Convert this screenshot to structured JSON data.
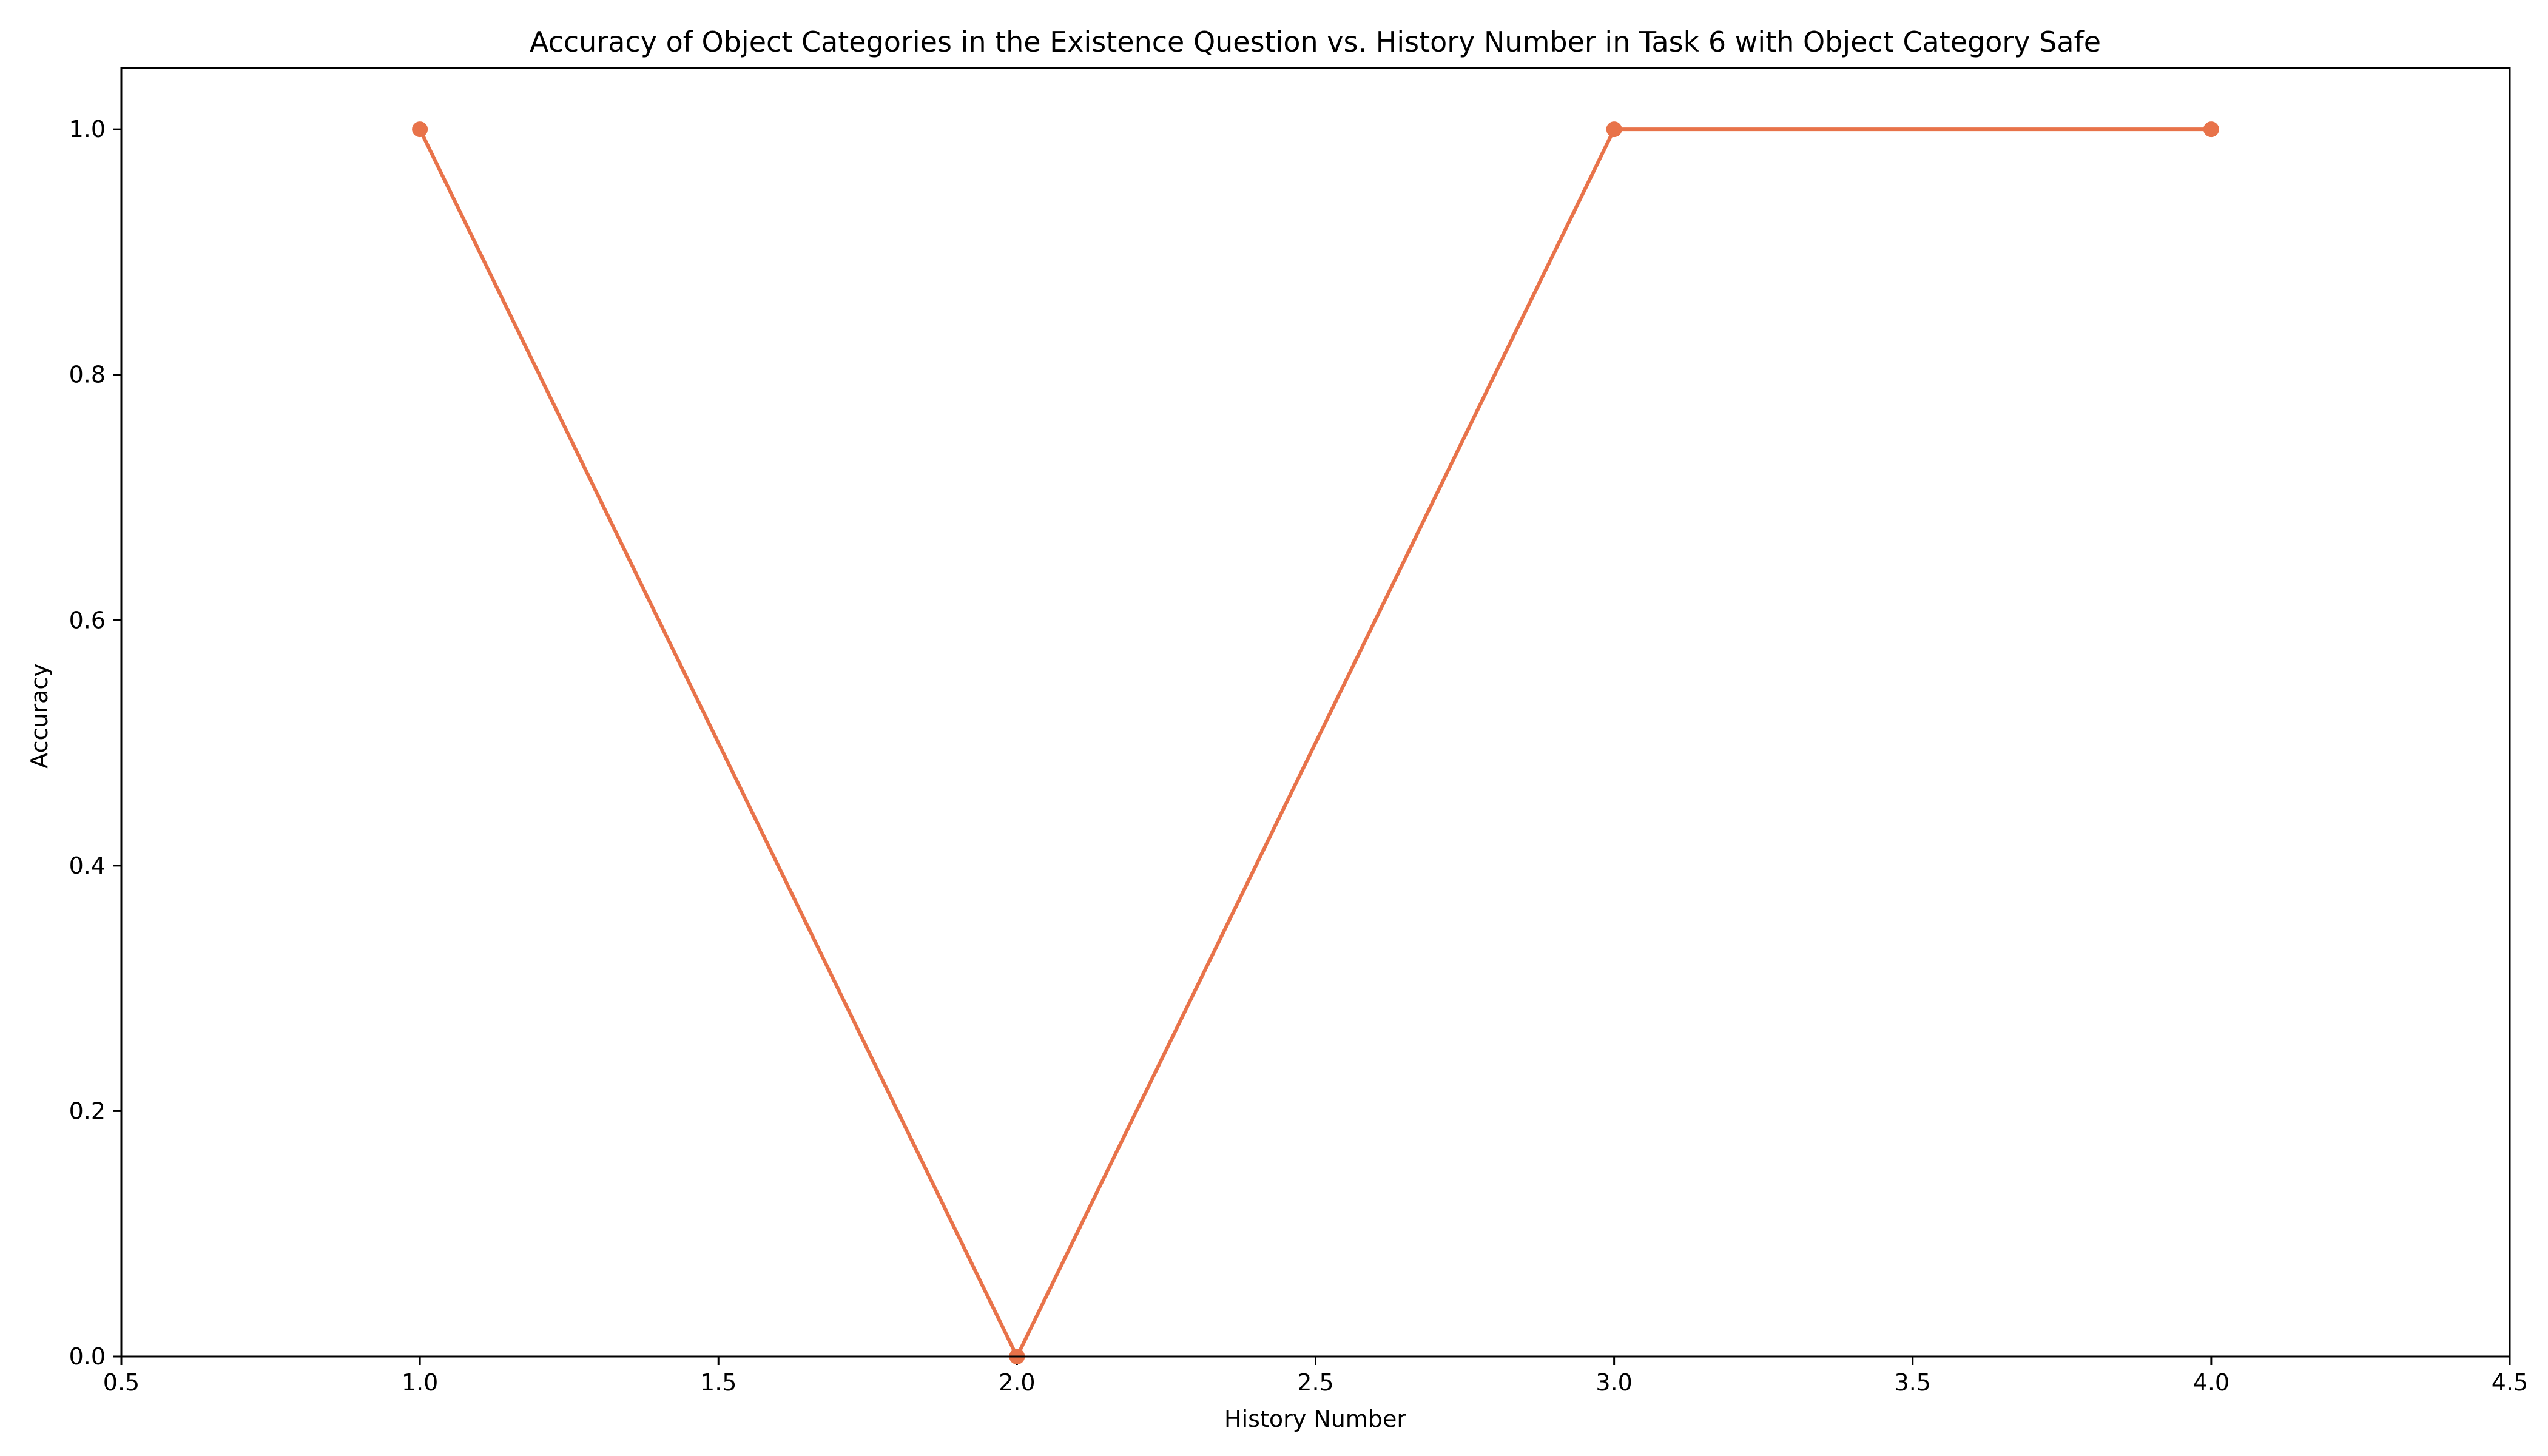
{
  "chart_data": {
    "type": "line",
    "title": "Accuracy of Object Categories in the Existence Question vs. History Number in Task 6 with Object Category Safe",
    "xlabel": "History Number",
    "ylabel": "Accuracy",
    "xlim": [
      0.5,
      4.5
    ],
    "ylim": [
      0.0,
      1.05
    ],
    "x_ticks": [
      "0.5",
      "1.0",
      "1.5",
      "2.0",
      "2.5",
      "3.0",
      "3.5",
      "4.0",
      "4.5"
    ],
    "y_ticks": [
      "0.0",
      "0.2",
      "0.4",
      "0.6",
      "0.8",
      "1.0"
    ],
    "grid": false,
    "series": [
      {
        "x": [
          1.0,
          2.0,
          3.0,
          4.0
        ],
        "y": [
          1.0,
          0.0,
          1.0,
          1.0
        ],
        "color": "#E8734A",
        "marker": "circle"
      }
    ]
  }
}
